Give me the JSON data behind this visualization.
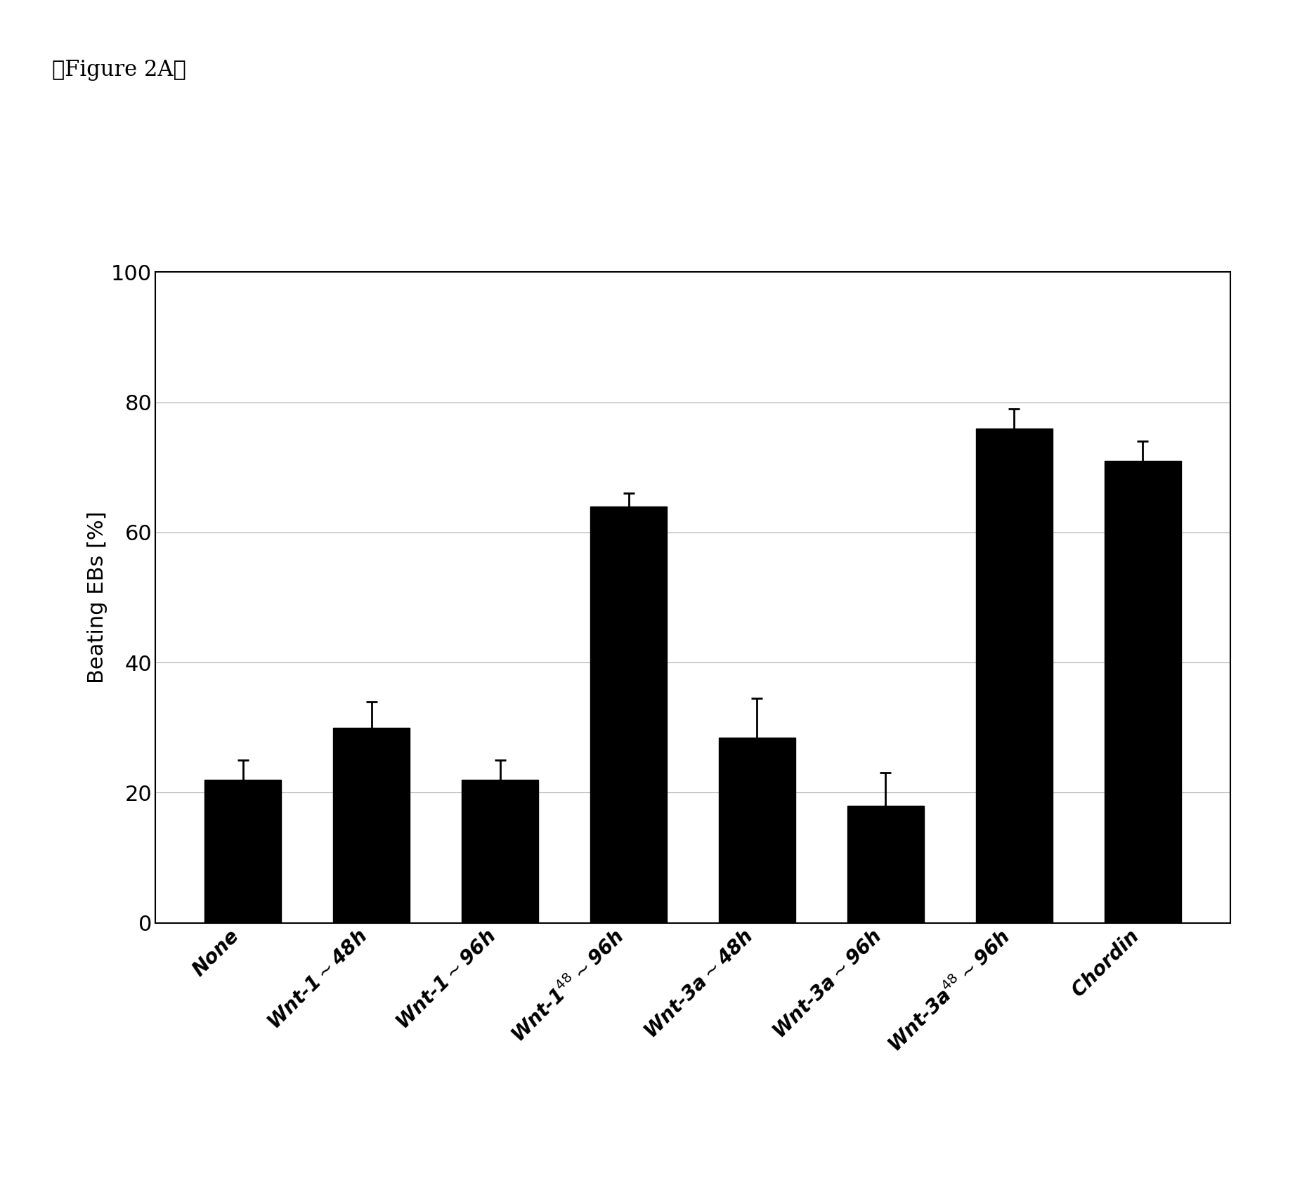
{
  "values": [
    22,
    30,
    22,
    64,
    28.5,
    18,
    76,
    71
  ],
  "errors": [
    3,
    4,
    3,
    2,
    6,
    5,
    3,
    3
  ],
  "bar_color": "#000000",
  "ylabel": "Beating EBs [%]",
  "ylim": [
    0,
    100
  ],
  "yticks": [
    0,
    20,
    40,
    60,
    80,
    100
  ],
  "figure_label": "『Figure 2A』",
  "background_color": "#ffffff",
  "bar_width": 0.6,
  "label_fontsize": 22,
  "tick_fontsize": 22,
  "xtick_fontsize": 20,
  "fig_label_fontsize": 22
}
